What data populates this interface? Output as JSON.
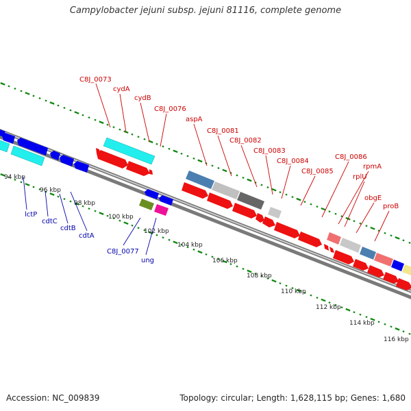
{
  "title": "Campylobacter jejuni subsp. jejuni 81116, complete genome",
  "footer": {
    "accession": "Accession: NC_009839",
    "summary": "Topology: circular; Length: 1,628,115 bp; Genes: 1,680"
  },
  "colors": {
    "forward_gene": "#ff0000",
    "reverse_gene": "#0000ee",
    "forward_label": "#cc0000",
    "reverse_label": "#0000aa",
    "backbone": "#888888",
    "tick": "#118811"
  },
  "ticks": [
    "94 kbp",
    "96 kbp",
    "98 kbp",
    "100 kbp",
    "102 kbp",
    "104 kbp",
    "106 kbp",
    "108 kbp",
    "110 kbp",
    "112 kbp",
    "114 kbp",
    "116 kbp"
  ],
  "forward_labels": [
    "C8J_0073",
    "cydA",
    "cydB",
    "C8J_0076",
    "aspA",
    "C8J_0081",
    "C8J_0082",
    "C8J_0083",
    "C8J_0084",
    "C8J_0085",
    "C8J_0086",
    "rpmA",
    "rplU",
    "obgE",
    "proB"
  ],
  "reverse_labels": [
    "lctP",
    "cdtC",
    "cdtB",
    "cdtA",
    "C8J_0077",
    "ung"
  ]
}
